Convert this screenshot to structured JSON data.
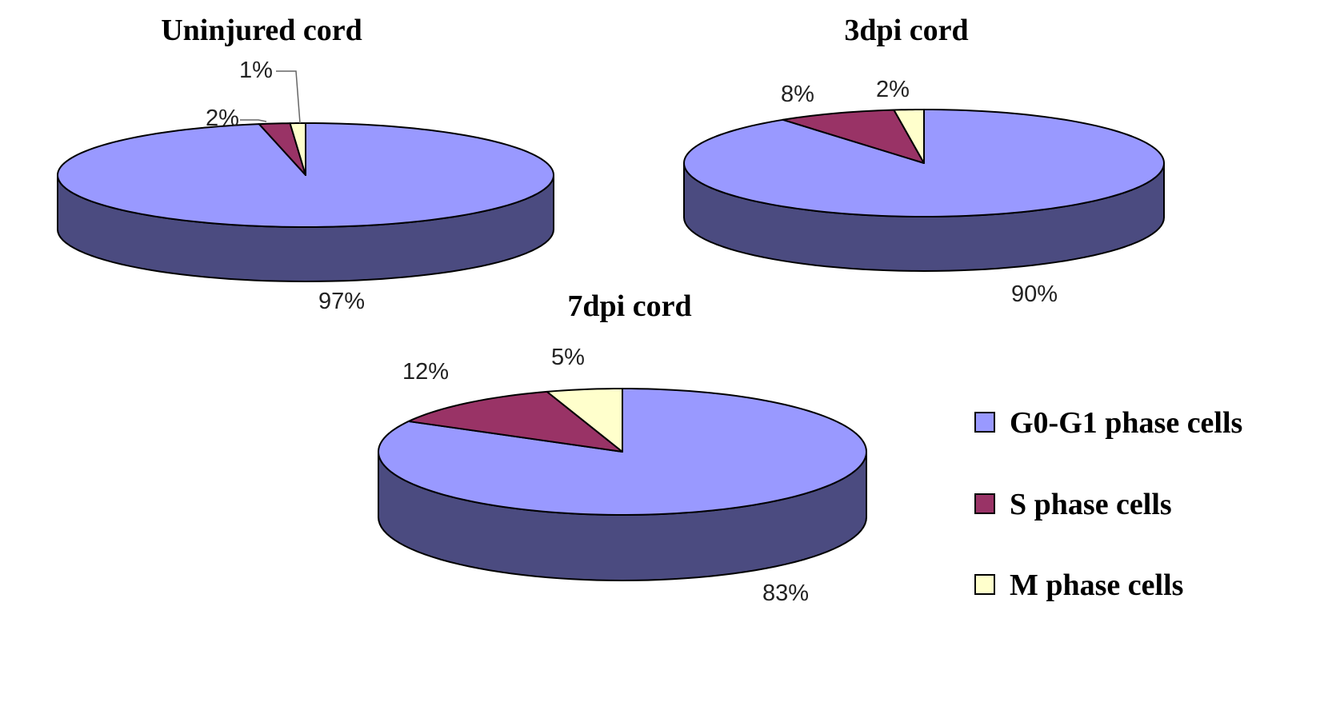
{
  "chart_data": [
    {
      "type": "pie",
      "title": "Uninjured cord",
      "categories": [
        "G0-G1 phase cells",
        "S phase cells",
        "M phase cells"
      ],
      "values": [
        97,
        2,
        1
      ],
      "labels": [
        "97%",
        "2%",
        "1%"
      ]
    },
    {
      "type": "pie",
      "title": "3dpi cord",
      "categories": [
        "G0-G1 phase cells",
        "S phase cells",
        "M phase cells"
      ],
      "values": [
        90,
        8,
        2
      ],
      "labels": [
        "90%",
        "8%",
        "2%"
      ]
    },
    {
      "type": "pie",
      "title": "7dpi cord",
      "categories": [
        "G0-G1 phase cells",
        "S phase cells",
        "M phase cells"
      ],
      "values": [
        83,
        12,
        5
      ],
      "labels": [
        "83%",
        "12%",
        "5%"
      ]
    }
  ],
  "legend": {
    "placement": "right",
    "items": [
      {
        "label": "G0-G1 phase cells",
        "color": "#9999ff"
      },
      {
        "label": "S phase cells",
        "color": "#993366"
      },
      {
        "label": "M phase cells",
        "color": "#ffffcc"
      }
    ]
  },
  "colors": {
    "top": [
      "#9999ff",
      "#993366",
      "#ffffcc"
    ],
    "side": [
      "#4b4b80",
      "#4d1a33",
      "#808066"
    ],
    "outline": "#000000"
  }
}
